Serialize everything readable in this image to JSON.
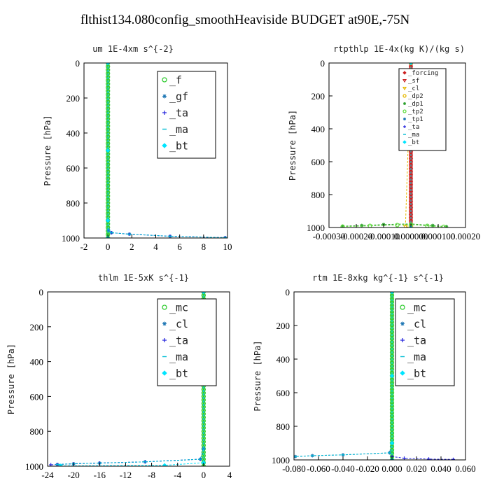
{
  "title": "flthist134.080config_smoothHeaviside  BUDGET at90E,-75N",
  "chart_data": [
    {
      "type": "line",
      "title": "um  1E-4xm s^{-2}",
      "ylabel": "Pressure [hPa]",
      "xlim": [
        -2,
        10
      ],
      "ylim": [
        1000,
        0
      ],
      "xticks": [
        -2,
        0,
        2,
        4,
        6,
        8,
        10
      ],
      "xtick_labels": [
        "-2",
        "0",
        "2",
        "4",
        "6",
        "8",
        "10"
      ],
      "yticks": [
        0,
        200,
        400,
        600,
        800,
        1000
      ],
      "ytick_labels": [
        "0",
        "200",
        "400",
        "600",
        "800",
        "1000"
      ],
      "legend_position": "top-right",
      "series": [
        {
          "name": "_f",
          "color": "#33cc33",
          "marker": "circle",
          "x": [
            0,
            0,
            0,
            0,
            0,
            0,
            0,
            0,
            0,
            0,
            0,
            0,
            0,
            0,
            0,
            0,
            0,
            0,
            0,
            0,
            0,
            0,
            0,
            0,
            0,
            0,
            0,
            0,
            0,
            0,
            0,
            0,
            0,
            0,
            0,
            0,
            0,
            0,
            0,
            0,
            0,
            0,
            0,
            0,
            0,
            0,
            0,
            0,
            0,
            0,
            0
          ],
          "y": [
            0,
            20,
            40,
            60,
            80,
            100,
            120,
            140,
            160,
            180,
            200,
            220,
            240,
            260,
            280,
            300,
            320,
            340,
            360,
            380,
            400,
            420,
            440,
            460,
            480,
            500,
            520,
            540,
            560,
            580,
            600,
            620,
            640,
            660,
            680,
            700,
            720,
            740,
            760,
            780,
            800,
            820,
            840,
            860,
            880,
            900,
            920,
            940,
            960,
            980,
            1000
          ]
        },
        {
          "name": "_gf",
          "color": "#1f77b4",
          "marker": "star",
          "x": [
            0,
            0,
            0.05,
            0.3,
            1.8,
            5.2,
            9.8
          ],
          "y": [
            0,
            900,
            955,
            970,
            978,
            990,
            998
          ]
        },
        {
          "name": "_ta",
          "color": "#2222dd",
          "marker": "plus",
          "x": [
            0,
            0,
            0.05,
            0.3,
            1.8,
            5.2,
            9.8
          ],
          "y": [
            0,
            900,
            955,
            970,
            978,
            990,
            998
          ]
        },
        {
          "name": "_ma",
          "color": "#00bcd4",
          "marker": "dash",
          "x": [
            0,
            0,
            0.05,
            0.3,
            1.8,
            5.2,
            9.8
          ],
          "y": [
            0,
            900,
            955,
            970,
            978,
            990,
            998
          ]
        },
        {
          "name": "_bt",
          "color": "#00e5ff",
          "marker": "diamond",
          "x": [
            0,
            0,
            0,
            0
          ],
          "y": [
            0,
            500,
            900,
            1000
          ]
        }
      ]
    },
    {
      "type": "line",
      "title": "rtpthlp  1E-4x(kg K)/(kg s)",
      "ylabel": "Pressure [hPa]",
      "xlim": [
        -0.0003,
        0.0002
      ],
      "ylim": [
        1000,
        0
      ],
      "xticks": [
        -0.0003,
        -0.0002,
        -0.0001,
        0.0,
        0.0001,
        0.0002
      ],
      "xtick_labels": [
        "-0.00030",
        "-0.00020",
        "-0.00010",
        "0.000000",
        "0.000100",
        "0.00020"
      ],
      "yticks": [
        0,
        200,
        400,
        600,
        800,
        1000
      ],
      "ytick_labels": [
        "0",
        "200",
        "400",
        "600",
        "800",
        "1000"
      ],
      "legend_position": "top-right",
      "series": [
        {
          "name": "_forcing",
          "color": "#cc2222",
          "marker": "diamond",
          "x": [
            0,
            0,
            0,
            0,
            0,
            0,
            0,
            0,
            0,
            0,
            0,
            0,
            0,
            0,
            0,
            0,
            0,
            0,
            0,
            0,
            0,
            0,
            0,
            0,
            0,
            0,
            0,
            0,
            0,
            0,
            0,
            0,
            0,
            0,
            0,
            0,
            0,
            0,
            0,
            0,
            0,
            0,
            0,
            0,
            0,
            0,
            0,
            0,
            0,
            0,
            0
          ],
          "y": [
            0,
            20,
            40,
            60,
            80,
            100,
            120,
            140,
            160,
            180,
            200,
            220,
            240,
            260,
            280,
            300,
            320,
            340,
            360,
            380,
            400,
            420,
            440,
            460,
            480,
            500,
            520,
            540,
            560,
            580,
            600,
            620,
            640,
            660,
            680,
            700,
            720,
            740,
            760,
            780,
            800,
            820,
            840,
            860,
            880,
            900,
            920,
            940,
            960,
            980,
            1000
          ]
        },
        {
          "name": "_sf",
          "color": "#cc2222",
          "marker": "triangle",
          "x": [
            0,
            0
          ],
          "y": [
            0,
            1000
          ]
        },
        {
          "name": "_cl",
          "color": "#e6b800",
          "marker": "triangle",
          "x": [
            0,
            -2e-05,
            0
          ],
          "y": [
            0,
            995,
            1000
          ]
        },
        {
          "name": "_dp2",
          "color": "#e6b800",
          "marker": "circle",
          "x": [
            0,
            0
          ],
          "y": [
            0,
            1000
          ]
        },
        {
          "name": "_dp1",
          "color": "#2ca02c",
          "marker": "star",
          "x": [
            -0.00025,
            -0.00018,
            -0.0001,
            0.0,
            8e-05,
            0.00013
          ],
          "y": [
            992,
            988,
            982,
            978,
            988,
            995
          ]
        },
        {
          "name": "_tp2",
          "color": "#66dd44",
          "marker": "circle",
          "x": [
            -0.00025,
            -0.00015,
            -5e-05,
            0.0,
            6e-05,
            0.00012
          ],
          "y": [
            995,
            990,
            985,
            982,
            990,
            996
          ]
        },
        {
          "name": "_tp1",
          "color": "#1f77b4",
          "marker": "star",
          "x": [
            0,
            0
          ],
          "y": [
            0,
            1000
          ]
        },
        {
          "name": "_ta",
          "color": "#2222dd",
          "marker": "plus",
          "x": [
            0,
            0
          ],
          "y": [
            0,
            1000
          ]
        },
        {
          "name": "_ma",
          "color": "#00bcd4",
          "marker": "dash",
          "x": [
            0,
            0
          ],
          "y": [
            0,
            1000
          ]
        },
        {
          "name": "_bt",
          "color": "#00e5ff",
          "marker": "diamond",
          "x": [
            0,
            0
          ],
          "y": [
            0,
            1000
          ]
        }
      ]
    },
    {
      "type": "line",
      "title": "thlm  1E-5xK s^{-1}",
      "ylabel": "Pressure [hPa]",
      "xlim": [
        -24,
        4
      ],
      "ylim": [
        1000,
        0
      ],
      "xticks": [
        -24,
        -20,
        -16,
        -12,
        -8,
        -4,
        0,
        4
      ],
      "xtick_labels": [
        "-24",
        "-20",
        "-16",
        "-12",
        "-8",
        "-4",
        "0",
        "4"
      ],
      "yticks": [
        0,
        200,
        400,
        600,
        800,
        1000
      ],
      "ytick_labels": [
        "0",
        "200",
        "400",
        "600",
        "800",
        "1000"
      ],
      "legend_position": "top-right",
      "series": [
        {
          "name": "_mc",
          "color": "#33cc33",
          "marker": "circle",
          "x": [
            0,
            0,
            0,
            0,
            0,
            0,
            0,
            0,
            0,
            0,
            0,
            0,
            0,
            0,
            0,
            0,
            0,
            0,
            0,
            0,
            0,
            0,
            0,
            0,
            0,
            0,
            0,
            0,
            0,
            0,
            0,
            0,
            0,
            0,
            0,
            0,
            0,
            0,
            0,
            0,
            0,
            0,
            0,
            0,
            0,
            0,
            0,
            0,
            0,
            0,
            0
          ],
          "y": [
            0,
            20,
            40,
            60,
            80,
            100,
            120,
            140,
            160,
            180,
            200,
            220,
            240,
            260,
            280,
            300,
            320,
            340,
            360,
            380,
            400,
            420,
            440,
            460,
            480,
            500,
            520,
            540,
            560,
            580,
            600,
            620,
            640,
            660,
            680,
            700,
            720,
            740,
            760,
            780,
            800,
            820,
            840,
            860,
            880,
            900,
            920,
            940,
            960,
            980,
            1000
          ]
        },
        {
          "name": "_cl",
          "color": "#1f77b4",
          "marker": "star",
          "x": [
            0,
            0,
            -0.5,
            -9,
            -16,
            -20,
            -22.5
          ],
          "y": [
            0,
            900,
            960,
            975,
            982,
            986,
            990
          ]
        },
        {
          "name": "_ta",
          "color": "#2222dd",
          "marker": "plus",
          "x": [
            0,
            0,
            -0.5,
            -9,
            -16,
            -20,
            -22.5,
            -23.5
          ],
          "y": [
            0,
            900,
            960,
            975,
            982,
            986,
            990,
            992
          ]
        },
        {
          "name": "_ma",
          "color": "#00bcd4",
          "marker": "dash",
          "x": [
            0,
            0,
            -0.5,
            -9,
            -16,
            -20,
            -22.5
          ],
          "y": [
            0,
            900,
            960,
            975,
            982,
            986,
            990
          ]
        },
        {
          "name": "_bt",
          "color": "#00e5ff",
          "marker": "diamond",
          "x": [
            0,
            0,
            -6,
            -22
          ],
          "y": [
            0,
            980,
            995,
            998
          ]
        }
      ]
    },
    {
      "type": "line",
      "title": "rtm  1E-8xkg kg^{-1} s^{-1}",
      "ylabel": "Pressure [hPa]",
      "xlim": [
        -0.08,
        0.06
      ],
      "ylim": [
        1000,
        0
      ],
      "xticks": [
        -0.08,
        -0.06,
        -0.04,
        -0.02,
        0.0,
        0.02,
        0.04,
        0.06
      ],
      "xtick_labels": [
        "-0.080",
        "-0.060",
        "-0.040",
        "-0.020",
        "0.000",
        "0.020",
        "0.040",
        "0.060"
      ],
      "yticks": [
        0,
        200,
        400,
        600,
        800,
        1000
      ],
      "ytick_labels": [
        "0",
        "200",
        "400",
        "600",
        "800",
        "1000"
      ],
      "legend_position": "top-right",
      "series": [
        {
          "name": "_mc",
          "color": "#33cc33",
          "marker": "circle",
          "x": [
            0,
            0,
            0,
            0,
            0,
            0,
            0,
            0,
            0,
            0,
            0,
            0,
            0,
            0,
            0,
            0,
            0,
            0,
            0,
            0,
            0,
            0,
            0,
            0,
            0,
            0,
            0,
            0,
            0,
            0,
            0,
            0,
            0,
            0,
            0,
            0,
            0,
            0,
            0,
            0,
            0,
            0,
            0,
            0,
            0,
            0,
            0,
            0,
            0,
            0,
            0
          ],
          "y": [
            0,
            20,
            40,
            60,
            80,
            100,
            120,
            140,
            160,
            180,
            200,
            220,
            240,
            260,
            280,
            300,
            320,
            340,
            360,
            380,
            400,
            420,
            440,
            460,
            480,
            500,
            520,
            540,
            560,
            580,
            600,
            620,
            640,
            660,
            680,
            700,
            720,
            740,
            760,
            780,
            800,
            820,
            840,
            860,
            880,
            900,
            920,
            940,
            960,
            980,
            1000
          ]
        },
        {
          "name": "_cl",
          "color": "#1f77b4",
          "marker": "star",
          "x": [
            0,
            0,
            -0.002,
            -0.04,
            -0.065,
            -0.079
          ],
          "y": [
            0,
            900,
            958,
            970,
            975,
            980
          ]
        },
        {
          "name": "_ta",
          "color": "#2222dd",
          "marker": "plus",
          "x": [
            0,
            0,
            0.01,
            0.03,
            0.05
          ],
          "y": [
            0,
            980,
            990,
            995,
            997
          ]
        },
        {
          "name": "_ma",
          "color": "#00bcd4",
          "marker": "dash",
          "x": [
            0,
            0,
            -0.002,
            -0.04,
            -0.065,
            -0.079
          ],
          "y": [
            0,
            900,
            958,
            970,
            975,
            980
          ]
        },
        {
          "name": "_bt",
          "color": "#00e5ff",
          "marker": "diamond",
          "x": [
            0,
            0,
            0,
            0
          ],
          "y": [
            0,
            500,
            900,
            1000
          ]
        }
      ]
    }
  ]
}
